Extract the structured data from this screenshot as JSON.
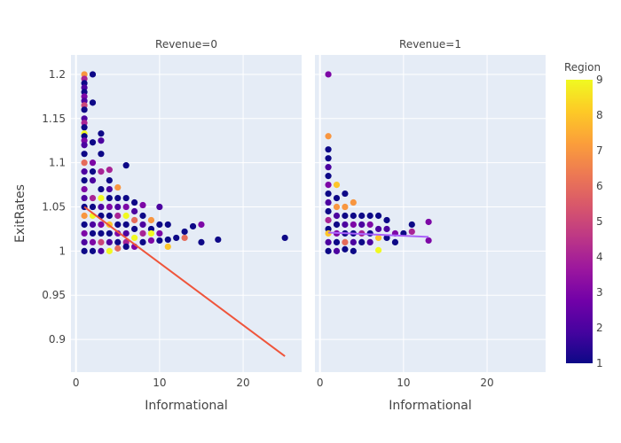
{
  "chart_data": {
    "type": "scatter",
    "xlabel": "Informational",
    "ylabel": "ExitRates",
    "xlim": [
      -0.6,
      27
    ],
    "ylim": [
      0.863,
      1.222
    ],
    "x_ticks": [
      0,
      10,
      20
    ],
    "y_ticks": [
      0.9,
      0.95,
      1,
      1.05,
      1.1,
      1.15,
      1.2
    ],
    "x_tick_labels": [
      "0",
      "10",
      "20"
    ],
    "y_tick_labels": [
      "0.9",
      "0.95",
      "1",
      "1.05",
      "1.1",
      "1.15",
      "1.2"
    ],
    "colorbar": {
      "title": "Region",
      "min": 1,
      "max": 9,
      "ticks": [
        1,
        2,
        3,
        4,
        5,
        6,
        7,
        8,
        9
      ],
      "tick_labels": [
        "1",
        "2",
        "3",
        "4",
        "5",
        "6",
        "7",
        "8",
        "9"
      ],
      "colorscale": [
        "#0d0887",
        "#46039f",
        "#7201a8",
        "#9c179e",
        "#bd3786",
        "#d8576b",
        "#ed7953",
        "#fb9f3a",
        "#fdca26",
        "#f0f921"
      ]
    },
    "panels": [
      {
        "title": "Revenue=0",
        "trendline": {
          "x": [
            1,
            25
          ],
          "y": [
            1.05,
            0.881
          ],
          "color": "#ef553b"
        },
        "points": [
          [
            1,
            1.2,
            7
          ],
          [
            1,
            1.195,
            4
          ],
          [
            1,
            1.19,
            1
          ],
          [
            1,
            1.185,
            2
          ],
          [
            1,
            1.18,
            1
          ],
          [
            1,
            1.175,
            3
          ],
          [
            1,
            1.17,
            2
          ],
          [
            1,
            1.165,
            5
          ],
          [
            1,
            1.16,
            1
          ],
          [
            1,
            1.15,
            2
          ],
          [
            1,
            1.145,
            4
          ],
          [
            1,
            1.14,
            1
          ],
          [
            1,
            1.133,
            9
          ],
          [
            1,
            1.13,
            1
          ],
          [
            1,
            1.125,
            3
          ],
          [
            1,
            1.12,
            2
          ],
          [
            1,
            1.11,
            1
          ],
          [
            1,
            1.1,
            6
          ],
          [
            1,
            1.09,
            2
          ],
          [
            1,
            1.08,
            1
          ],
          [
            1,
            1.07,
            3
          ],
          [
            1,
            1.06,
            2
          ],
          [
            1,
            1.05,
            1
          ],
          [
            1,
            1.04,
            7
          ],
          [
            1,
            1.03,
            1
          ],
          [
            1,
            1.02,
            3
          ],
          [
            1,
            1.01,
            2
          ],
          [
            1,
            1.0,
            1
          ],
          [
            2,
            1.2,
            1
          ],
          [
            2,
            1.168,
            1
          ],
          [
            2,
            1.123,
            1
          ],
          [
            2,
            1.1,
            3
          ],
          [
            2,
            1.09,
            1
          ],
          [
            2,
            1.08,
            2
          ],
          [
            2,
            1.06,
            4
          ],
          [
            2,
            1.05,
            1
          ],
          [
            2,
            1.04,
            9
          ],
          [
            2,
            1.03,
            2
          ],
          [
            2,
            1.02,
            1
          ],
          [
            2,
            1.01,
            3
          ],
          [
            2,
            1.0,
            1
          ],
          [
            3,
            1.133,
            1
          ],
          [
            3,
            1.125,
            2
          ],
          [
            3,
            1.11,
            1
          ],
          [
            3,
            1.09,
            4
          ],
          [
            3,
            1.07,
            1
          ],
          [
            3,
            1.06,
            9
          ],
          [
            3,
            1.05,
            2
          ],
          [
            3,
            1.04,
            1
          ],
          [
            3,
            1.03,
            3
          ],
          [
            3,
            1.02,
            1
          ],
          [
            3,
            1.01,
            5
          ],
          [
            3,
            1.0,
            2
          ],
          [
            4,
            1.092,
            4
          ],
          [
            4,
            1.08,
            1
          ],
          [
            4,
            1.07,
            2
          ],
          [
            4,
            1.06,
            1
          ],
          [
            4,
            1.05,
            3
          ],
          [
            4,
            1.04,
            1
          ],
          [
            4,
            1.03,
            8
          ],
          [
            4,
            1.02,
            1
          ],
          [
            4,
            1.01,
            2
          ],
          [
            4,
            1.0,
            9
          ],
          [
            5,
            1.072,
            7
          ],
          [
            5,
            1.06,
            1
          ],
          [
            5,
            1.05,
            2
          ],
          [
            5,
            1.04,
            4
          ],
          [
            5,
            1.03,
            1
          ],
          [
            5,
            1.02,
            3
          ],
          [
            5,
            1.01,
            1
          ],
          [
            5,
            1.003,
            6
          ],
          [
            6,
            1.097,
            1
          ],
          [
            6,
            1.06,
            1
          ],
          [
            6,
            1.05,
            3
          ],
          [
            6,
            1.04,
            9
          ],
          [
            6,
            1.03,
            1
          ],
          [
            6,
            1.02,
            2
          ],
          [
            6,
            1.01,
            4
          ],
          [
            6,
            1.005,
            1
          ],
          [
            7,
            1.055,
            1
          ],
          [
            7,
            1.045,
            2
          ],
          [
            7,
            1.035,
            6
          ],
          [
            7,
            1.025,
            1
          ],
          [
            7,
            1.015,
            9
          ],
          [
            7,
            1.005,
            3
          ],
          [
            8,
            1.052,
            3
          ],
          [
            8,
            1.04,
            1
          ],
          [
            8,
            1.03,
            2
          ],
          [
            8,
            1.02,
            4
          ],
          [
            8,
            1.01,
            1
          ],
          [
            9,
            1.035,
            7
          ],
          [
            9,
            1.025,
            1
          ],
          [
            9,
            1.02,
            9
          ],
          [
            9,
            1.012,
            3
          ],
          [
            10,
            1.05,
            2
          ],
          [
            10,
            1.03,
            1
          ],
          [
            10,
            1.02,
            3
          ],
          [
            10,
            1.012,
            1
          ],
          [
            11,
            1.03,
            1
          ],
          [
            11,
            1.013,
            1
          ],
          [
            11,
            1.005,
            8
          ],
          [
            12,
            1.015,
            1
          ],
          [
            13,
            1.022,
            1
          ],
          [
            13,
            1.015,
            6
          ],
          [
            14,
            1.028,
            1
          ],
          [
            15,
            1.03,
            3
          ],
          [
            15,
            1.01,
            1
          ],
          [
            17,
            1.013,
            1
          ],
          [
            25,
            1.015,
            1
          ]
        ]
      },
      {
        "title": "Revenue=1",
        "trendline": {
          "x": [
            1,
            13
          ],
          "y": [
            1.021,
            1.016
          ],
          "color": "#ab63fa"
        },
        "points": [
          [
            1,
            1.2,
            3
          ],
          [
            1,
            1.13,
            7
          ],
          [
            1,
            1.115,
            1
          ],
          [
            1,
            1.105,
            1
          ],
          [
            1,
            1.095,
            2
          ],
          [
            1,
            1.085,
            1
          ],
          [
            1,
            1.075,
            3
          ],
          [
            1,
            1.065,
            1
          ],
          [
            1,
            1.055,
            2
          ],
          [
            1,
            1.045,
            1
          ],
          [
            1,
            1.035,
            4
          ],
          [
            1,
            1.025,
            1
          ],
          [
            1,
            1.02,
            8
          ],
          [
            1,
            1.01,
            2
          ],
          [
            1,
            1.0,
            1
          ],
          [
            2,
            1.075,
            8
          ],
          [
            2,
            1.06,
            1
          ],
          [
            2,
            1.05,
            7
          ],
          [
            2,
            1.04,
            2
          ],
          [
            2,
            1.03,
            1
          ],
          [
            2,
            1.02,
            3
          ],
          [
            2,
            1.01,
            1
          ],
          [
            2,
            1.0,
            2
          ],
          [
            3,
            1.065,
            1
          ],
          [
            3,
            1.05,
            7
          ],
          [
            3,
            1.04,
            1
          ],
          [
            3,
            1.03,
            2
          ],
          [
            3,
            1.02,
            1
          ],
          [
            3,
            1.01,
            6
          ],
          [
            3,
            1.002,
            1
          ],
          [
            4,
            1.055,
            7
          ],
          [
            4,
            1.04,
            1
          ],
          [
            4,
            1.03,
            3
          ],
          [
            4,
            1.02,
            1
          ],
          [
            4,
            1.01,
            2
          ],
          [
            4,
            1.0,
            1
          ],
          [
            5,
            1.04,
            1
          ],
          [
            5,
            1.03,
            2
          ],
          [
            5,
            1.02,
            4
          ],
          [
            5,
            1.01,
            1
          ],
          [
            6,
            1.04,
            1
          ],
          [
            6,
            1.03,
            3
          ],
          [
            6,
            1.02,
            1
          ],
          [
            6,
            1.01,
            2
          ],
          [
            7,
            1.04,
            1
          ],
          [
            7,
            1.025,
            2
          ],
          [
            7,
            1.015,
            8
          ],
          [
            7,
            1.001,
            9
          ],
          [
            8,
            1.035,
            1
          ],
          [
            8,
            1.025,
            2
          ],
          [
            8,
            1.015,
            1
          ],
          [
            9,
            1.02,
            3
          ],
          [
            9,
            1.01,
            1
          ],
          [
            10,
            1.02,
            1
          ],
          [
            11,
            1.03,
            1
          ],
          [
            11,
            1.022,
            4
          ],
          [
            13,
            1.033,
            3
          ],
          [
            13,
            1.012,
            3
          ]
        ]
      }
    ]
  }
}
